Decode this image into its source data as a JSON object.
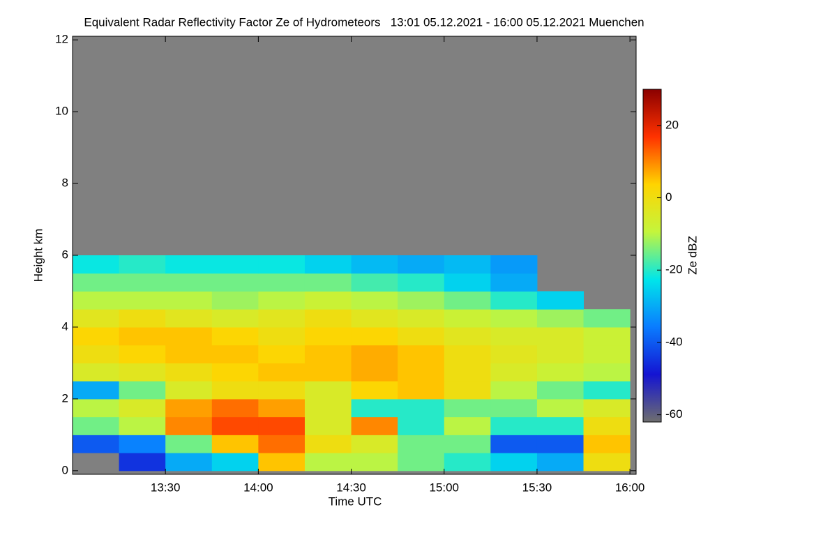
{
  "chart_data": {
    "type": "heatmap",
    "title": "Equivalent Radar Reflectivity Factor Ze of Hydrometeors   13:01 05.12.2021 - 16:00 05.12.2021 Muenchen",
    "xlabel": "Time UTC",
    "ylabel": "Height km",
    "colorbar_label": "Ze dBZ",
    "xlim": [
      780,
      962
    ],
    "xticks": [
      {
        "value": 810,
        "label": "13:30"
      },
      {
        "value": 840,
        "label": "14:00"
      },
      {
        "value": 870,
        "label": "14:30"
      },
      {
        "value": 900,
        "label": "15:00"
      },
      {
        "value": 930,
        "label": "15:30"
      },
      {
        "value": 960,
        "label": "16:00"
      }
    ],
    "ylim": [
      -0.1,
      12.1
    ],
    "yticks": [
      0,
      2,
      4,
      6,
      8,
      10,
      12
    ],
    "zlim": [
      -62,
      30
    ],
    "zticks": [
      20,
      0,
      -20,
      -40,
      -60
    ],
    "colormap": [
      "#6e6e6e",
      "#1414d2",
      "#0a7cff",
      "#00e6ea",
      "#c4f53c",
      "#ffd400",
      "#ff3200",
      "#8b0000"
    ],
    "background": "#808080",
    "xbins": [
      780,
      795,
      810,
      825,
      840,
      855,
      870,
      885,
      900,
      915,
      930,
      945,
      960
    ],
    "ybins": [
      0,
      0.5,
      1,
      1.5,
      2,
      2.5,
      3,
      3.5,
      4,
      4.5,
      5,
      5.5,
      6
    ],
    "z": [
      [
        null,
        -45,
        -30,
        -25,
        5,
        -10,
        -10,
        -15,
        -20,
        -25,
        -30,
        0
      ],
      [
        -40,
        -35,
        -15,
        5,
        12,
        0,
        -5,
        -15,
        -15,
        -40,
        -40,
        5
      ],
      [
        -15,
        -10,
        10,
        15,
        15,
        -5,
        10,
        -20,
        -10,
        -20,
        -20,
        0
      ],
      [
        -10,
        -5,
        8,
        12,
        8,
        -5,
        -20,
        -20,
        -15,
        -15,
        -10,
        -5
      ],
      [
        -30,
        -15,
        -5,
        0,
        0,
        -5,
        3,
        5,
        0,
        -10,
        -15,
        -20
      ],
      [
        -5,
        -3,
        0,
        3,
        5,
        5,
        7,
        5,
        0,
        -5,
        -8,
        -10
      ],
      [
        0,
        3,
        5,
        5,
        3,
        5,
        7,
        5,
        0,
        -3,
        -5,
        -8
      ],
      [
        3,
        5,
        5,
        3,
        0,
        3,
        3,
        0,
        -3,
        -5,
        -5,
        -8
      ],
      [
        -3,
        0,
        -3,
        -5,
        -3,
        0,
        -3,
        -5,
        -8,
        -10,
        -12,
        -15
      ],
      [
        -10,
        -10,
        -10,
        -12,
        -10,
        -8,
        -10,
        -12,
        -15,
        -20,
        -25,
        null
      ],
      [
        -15,
        -15,
        -15,
        -15,
        -15,
        -15,
        -18,
        -20,
        -25,
        -30,
        null,
        null
      ],
      [
        -22,
        -20,
        -22,
        -22,
        -22,
        -25,
        -28,
        -30,
        -28,
        -32,
        null,
        null
      ]
    ]
  }
}
